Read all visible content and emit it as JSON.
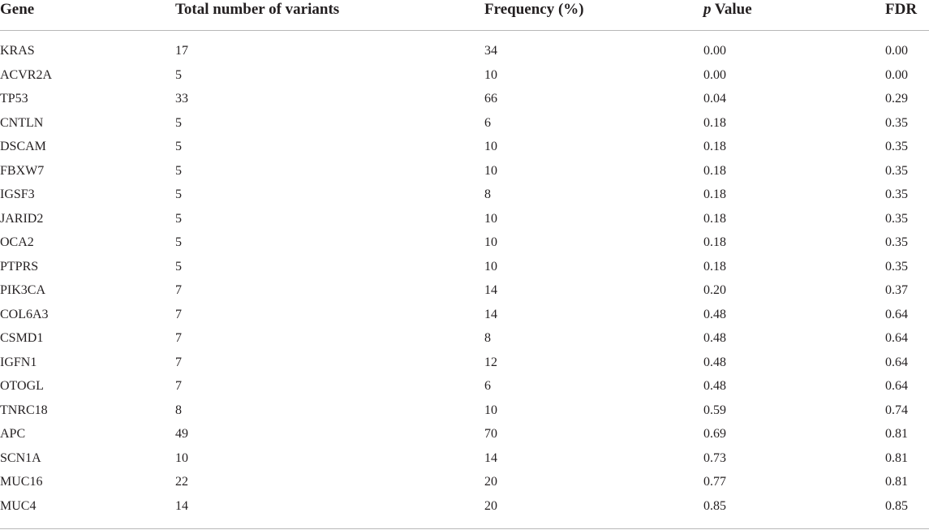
{
  "table": {
    "headers": {
      "gene": "Gene",
      "total": "Total number of variants",
      "frequency": "Frequency (%)",
      "p_italic": "p",
      "p_rest": " Value",
      "fdr": "FDR"
    },
    "rows": [
      {
        "gene": "KRAS",
        "total": "17",
        "frequency": "34",
        "p": "0.00",
        "fdr": "0.00"
      },
      {
        "gene": "ACVR2A",
        "total": "5",
        "frequency": "10",
        "p": "0.00",
        "fdr": "0.00"
      },
      {
        "gene": "TP53",
        "total": "33",
        "frequency": "66",
        "p": "0.04",
        "fdr": "0.29"
      },
      {
        "gene": "CNTLN",
        "total": "5",
        "frequency": "6",
        "p": "0.18",
        "fdr": "0.35"
      },
      {
        "gene": "DSCAM",
        "total": "5",
        "frequency": "10",
        "p": "0.18",
        "fdr": "0.35"
      },
      {
        "gene": "FBXW7",
        "total": "5",
        "frequency": "10",
        "p": "0.18",
        "fdr": "0.35"
      },
      {
        "gene": "IGSF3",
        "total": "5",
        "frequency": "8",
        "p": "0.18",
        "fdr": "0.35"
      },
      {
        "gene": "JARID2",
        "total": "5",
        "frequency": "10",
        "p": "0.18",
        "fdr": "0.35"
      },
      {
        "gene": "OCA2",
        "total": "5",
        "frequency": "10",
        "p": "0.18",
        "fdr": "0.35"
      },
      {
        "gene": "PTPRS",
        "total": "5",
        "frequency": "10",
        "p": "0.18",
        "fdr": "0.35"
      },
      {
        "gene": "PIK3CA",
        "total": "7",
        "frequency": "14",
        "p": "0.20",
        "fdr": "0.37"
      },
      {
        "gene": "COL6A3",
        "total": "7",
        "frequency": "14",
        "p": "0.48",
        "fdr": "0.64"
      },
      {
        "gene": "CSMD1",
        "total": "7",
        "frequency": "8",
        "p": "0.48",
        "fdr": "0.64"
      },
      {
        "gene": "IGFN1",
        "total": "7",
        "frequency": "12",
        "p": "0.48",
        "fdr": "0.64"
      },
      {
        "gene": "OTOGL",
        "total": "7",
        "frequency": "6",
        "p": "0.48",
        "fdr": "0.64"
      },
      {
        "gene": "TNRC18",
        "total": "8",
        "frequency": "10",
        "p": "0.59",
        "fdr": "0.74"
      },
      {
        "gene": "APC",
        "total": "49",
        "frequency": "70",
        "p": "0.69",
        "fdr": "0.81"
      },
      {
        "gene": "SCN1A",
        "total": "10",
        "frequency": "14",
        "p": "0.73",
        "fdr": "0.81"
      },
      {
        "gene": "MUC16",
        "total": "22",
        "frequency": "20",
        "p": "0.77",
        "fdr": "0.81"
      },
      {
        "gene": "MUC4",
        "total": "14",
        "frequency": "20",
        "p": "0.85",
        "fdr": "0.85"
      }
    ]
  }
}
